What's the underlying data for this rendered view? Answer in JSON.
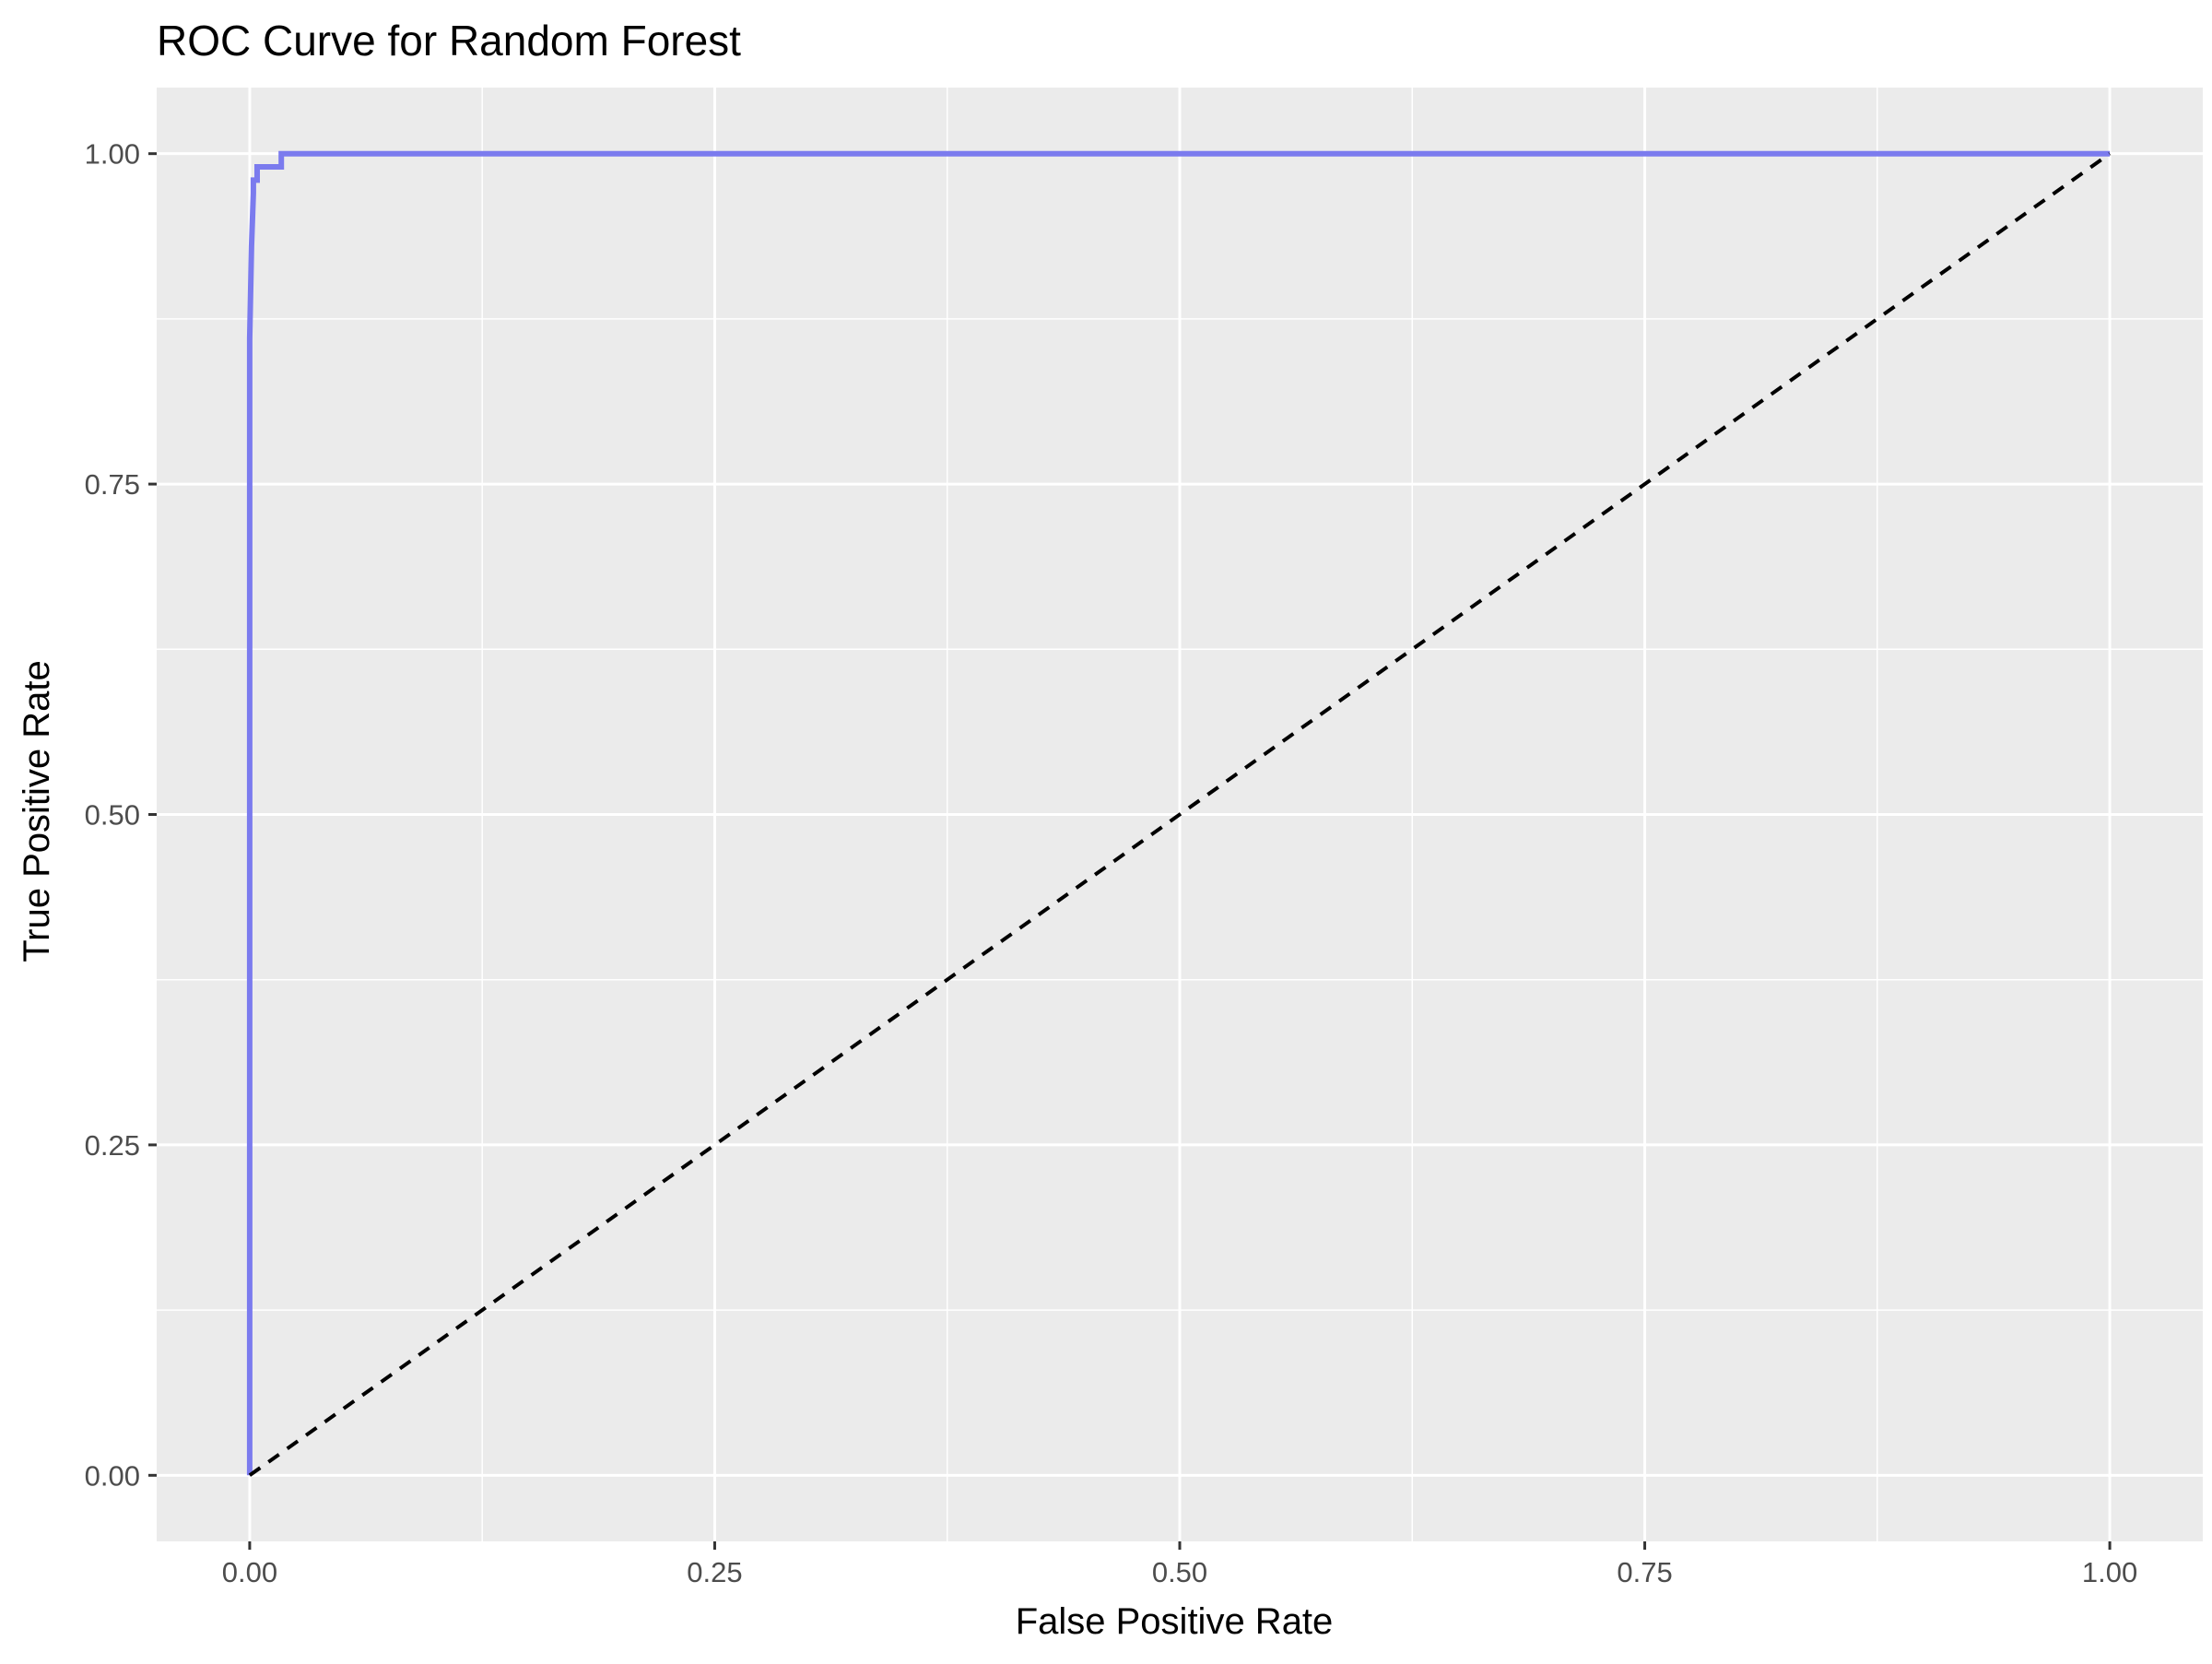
{
  "chart_data": {
    "type": "line",
    "title": "ROC Curve for Random Forest",
    "xlabel": "False Positive Rate",
    "ylabel": "True Positive Rate",
    "xlim": [
      -0.05,
      1.05
    ],
    "ylim": [
      -0.05,
      1.05
    ],
    "x_ticks": [
      0.0,
      0.25,
      0.5,
      0.75,
      1.0
    ],
    "x_tick_labels": [
      "0.00",
      "0.25",
      "0.50",
      "0.75",
      "1.00"
    ],
    "y_ticks": [
      0.0,
      0.25,
      0.5,
      0.75,
      1.0
    ],
    "y_tick_labels": [
      "0.00",
      "0.25",
      "0.50",
      "0.75",
      "1.00"
    ],
    "grid": true,
    "background": "#ebebeb",
    "series": [
      {
        "style": "solid",
        "color": "#7b7bee",
        "x": [
          0.0,
          0.0,
          0.001,
          0.002,
          0.002,
          0.004,
          0.004,
          0.017,
          0.017,
          1.0
        ],
        "y": [
          0.0,
          0.86,
          0.93,
          0.97,
          0.98,
          0.98,
          0.99,
          0.99,
          1.0,
          1.0
        ]
      },
      {
        "style": "dashed",
        "color": "#000000",
        "x": [
          0.0,
          1.0
        ],
        "y": [
          0.0,
          1.0
        ]
      }
    ]
  }
}
